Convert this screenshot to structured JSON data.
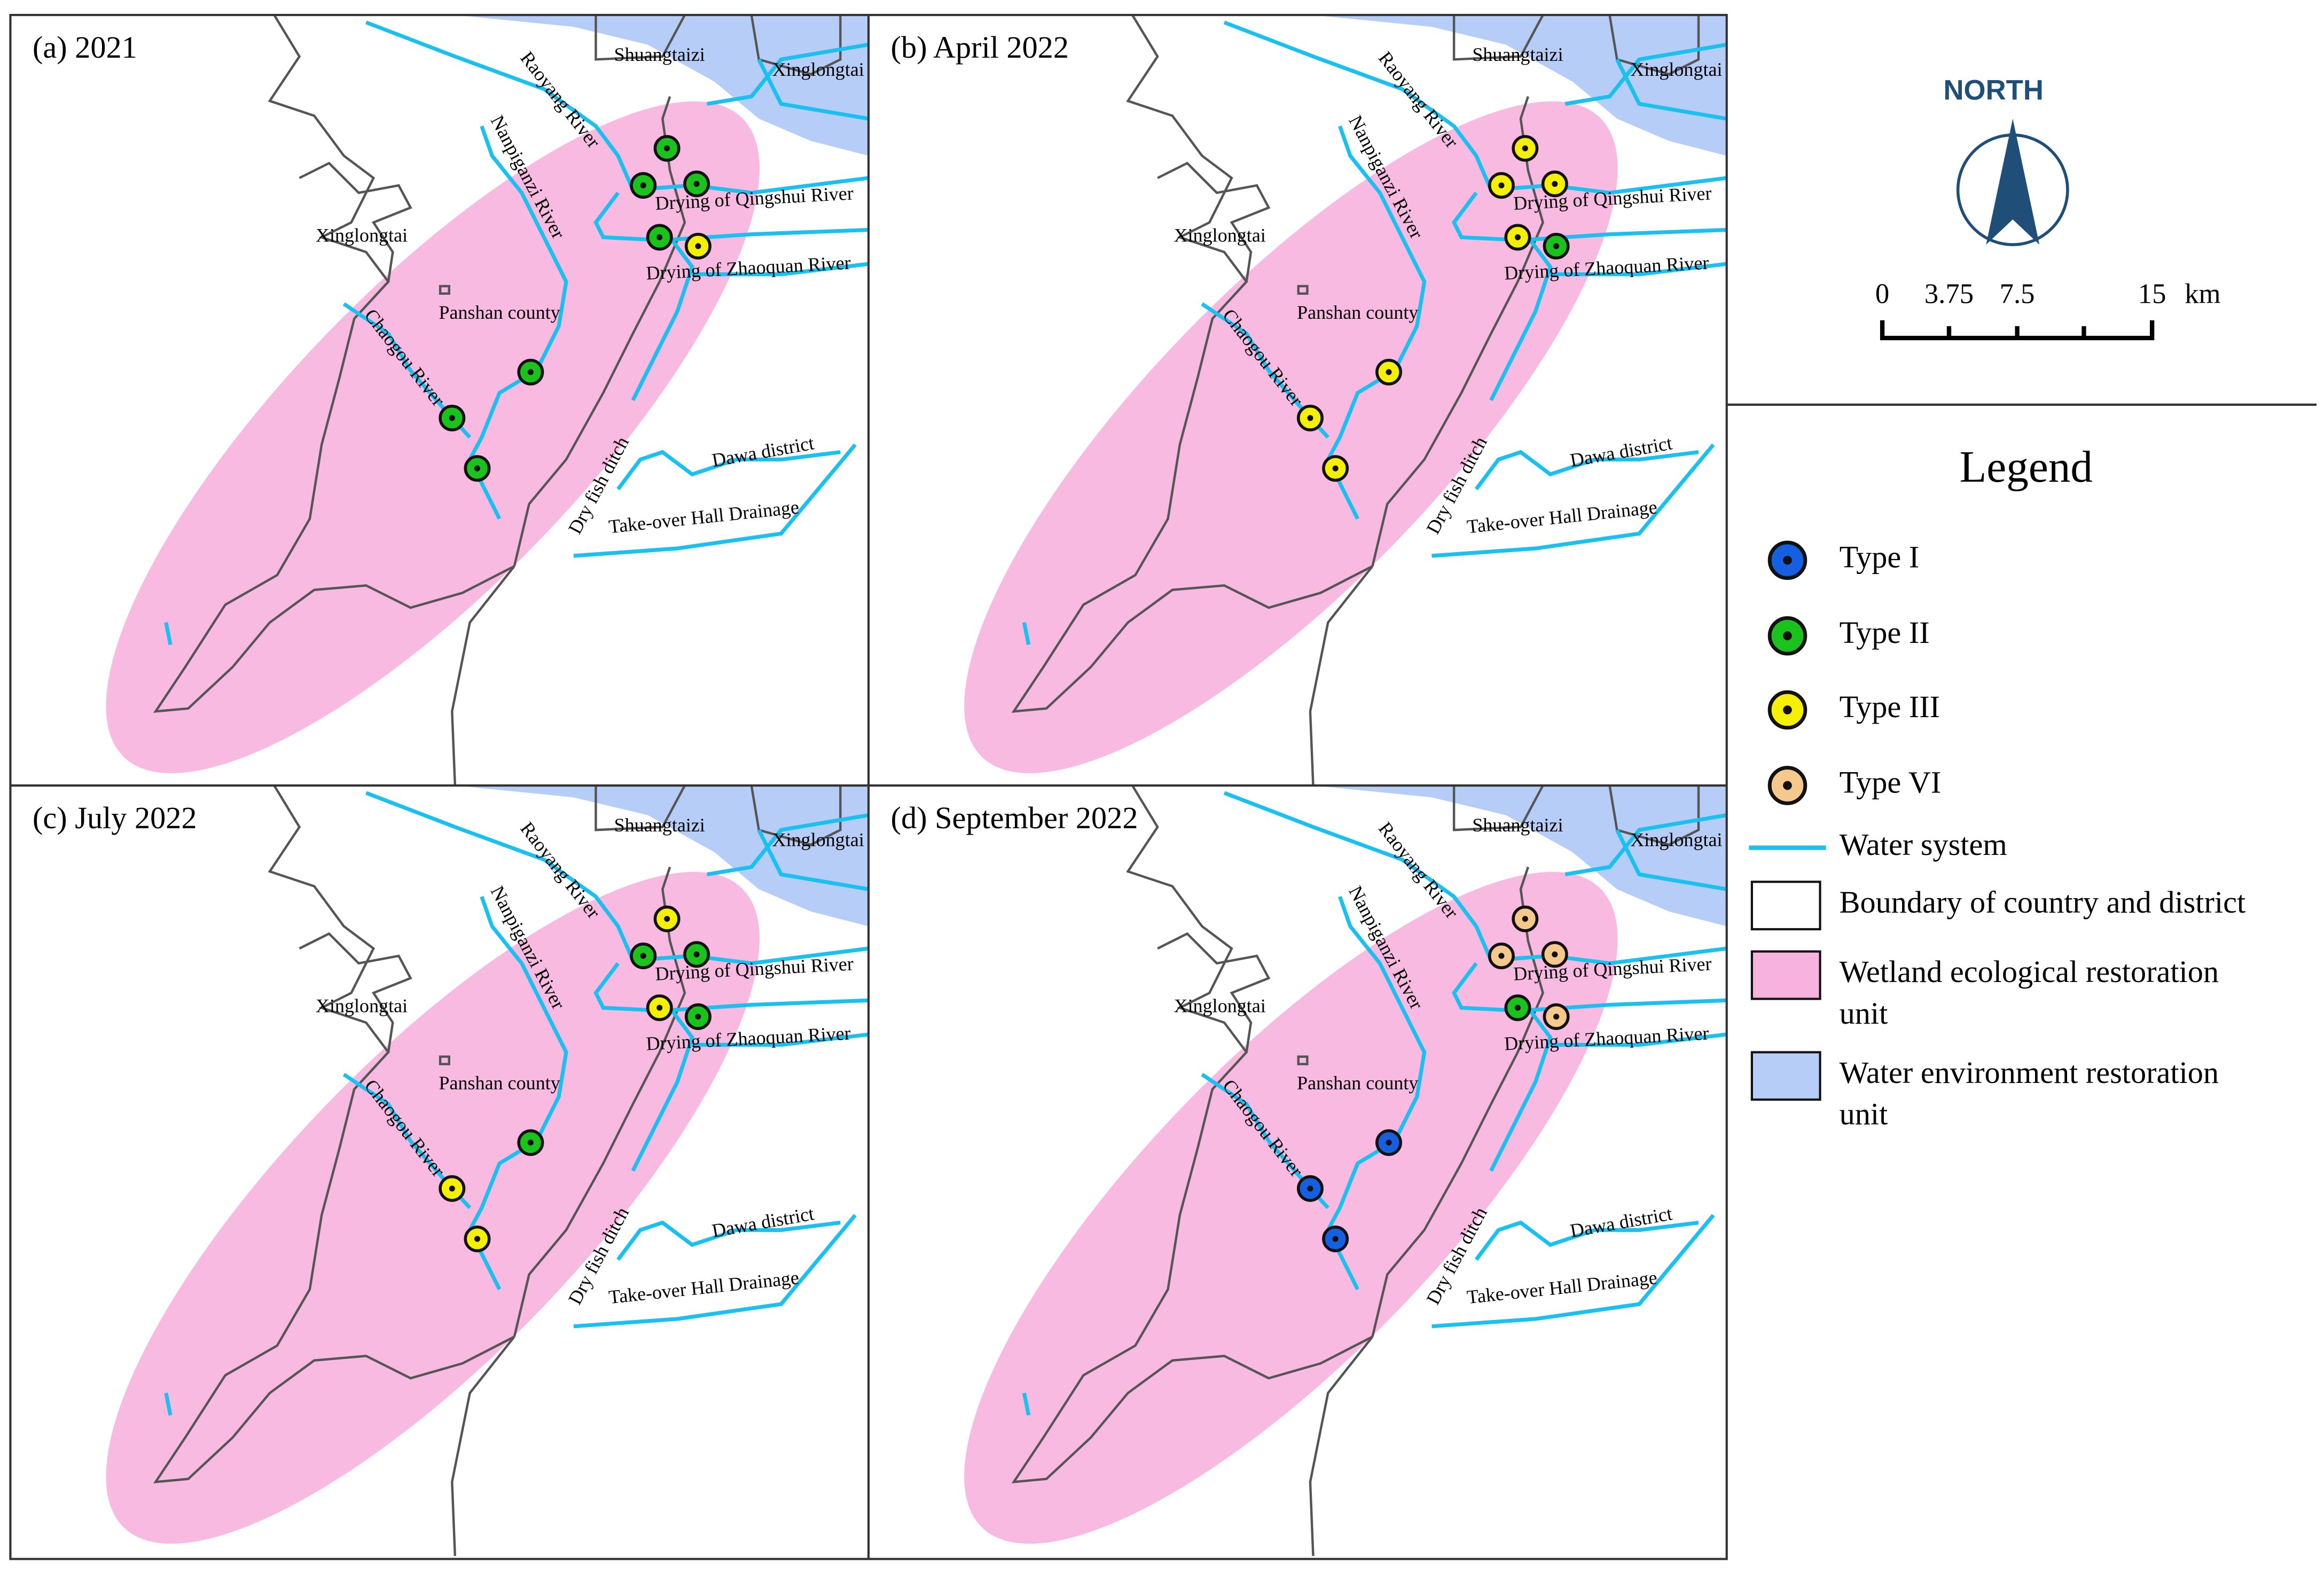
{
  "panels": [
    {
      "title": "(a) 2021",
      "sites": [
        "Type II",
        "Type II",
        "Type II",
        "Type II",
        "Type III",
        "Type II",
        "Type II",
        "Type II"
      ]
    },
    {
      "title": "(b) April 2022",
      "sites": [
        "Type III",
        "Type III",
        "Type III",
        "Type III",
        "Type II",
        "Type III",
        "Type III",
        "Type III"
      ]
    },
    {
      "title": "(c) July 2022",
      "sites": [
        "Type III",
        "Type II",
        "Type II",
        "Type III",
        "Type II",
        "Type II",
        "Type III",
        "Type III"
      ]
    },
    {
      "title": "(d) September 2022",
      "sites": [
        "Type VI",
        "Type VI",
        "Type VI",
        "Type II",
        "Type VI",
        "Type I",
        "Type I",
        "Type I"
      ]
    }
  ],
  "map_labels": [
    "Shuangtaizi",
    "Xinglongtai",
    "Raoyang River",
    "Nanpiganzi River",
    "Xinglongtai",
    "Drying of Qingshui River",
    "Drying of Zhaoquan River",
    "Panshan county",
    "Chaogou River",
    "Dry fish ditch",
    "Dawa district",
    "Take-over Hall Drainage"
  ],
  "north": "NORTH",
  "scale": {
    "ticks": [
      "0",
      "3.75",
      "7.5",
      "15"
    ],
    "unit": "km"
  },
  "legend": {
    "title": "Legend",
    "items": [
      {
        "label": "Type I",
        "color": "#1560e0"
      },
      {
        "label": "Type II",
        "color": "#1cc21c"
      },
      {
        "label": "Type III",
        "color": "#f5f000"
      },
      {
        "label": "Type VI",
        "color": "#f5c88c"
      },
      {
        "label": "Water system",
        "color": "#19c0f0"
      },
      {
        "label": "Boundary of  country and district",
        "color": "#ffffff"
      },
      {
        "label": "Wetland ecological restoration unit",
        "color": "#f7b3de"
      },
      {
        "label": "Water environment restoration unit",
        "color": "#b5cdf7"
      }
    ]
  }
}
